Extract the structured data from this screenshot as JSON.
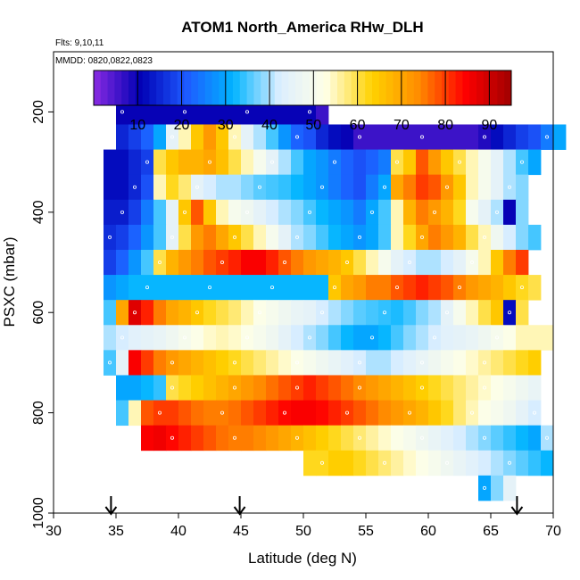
{
  "chart_data": {
    "type": "heatmap",
    "title": "ATOM1 North_America RHw_DLH",
    "annotations": [
      "Flts: 9,10,11",
      "MMDD: 0820,0822,0823"
    ],
    "xlabel": "Latitude (deg N)",
    "ylabel": "PSXC (mbar)",
    "xlim": [
      30,
      70
    ],
    "ylim": [
      1000,
      80
    ],
    "y_reversed": true,
    "x_ticks": [
      30,
      35,
      40,
      45,
      50,
      55,
      60,
      65,
      70
    ],
    "y_ticks": [
      200,
      400,
      600,
      800,
      1000
    ],
    "colorbar": {
      "range": [
        0,
        95
      ],
      "ticks": [
        10,
        20,
        30,
        40,
        50,
        60,
        70,
        80,
        90
      ],
      "colors": [
        "#8a2be2",
        "#0000b4",
        "#1e5aff",
        "#00b4ff",
        "#dceeff",
        "#ffffe6",
        "#ffd200",
        "#ff8c00",
        "#ff0000",
        "#a00000"
      ]
    },
    "cell_width_deg": 1,
    "cell_height_mbar": 50,
    "arrows_at_latitude": [
      34.6,
      44.9,
      67.1
    ],
    "bands": [
      {
        "p": 200,
        "lat_start": 35,
        "values": [
          10,
          10,
          10,
          10,
          10,
          10,
          10,
          10,
          10,
          10,
          10,
          10,
          10,
          10,
          10,
          10,
          6
        ]
      },
      {
        "p": 250,
        "lat_start": 35,
        "values": [
          15,
          18,
          22,
          30,
          45,
          55,
          65,
          72,
          65,
          55,
          45,
          40,
          35,
          28,
          22,
          20,
          15,
          12,
          10,
          6,
          6,
          6,
          6,
          6,
          6,
          6,
          6,
          6,
          6,
          8,
          12,
          15,
          18,
          20,
          25,
          30
        ]
      },
      {
        "p": 300,
        "lat_start": 34,
        "values": [
          12,
          12,
          15,
          18,
          60,
          65,
          68,
          68,
          70,
          66,
          60,
          55,
          50,
          45,
          40,
          35,
          30,
          28,
          25,
          22,
          20,
          22,
          25,
          60,
          65,
          78,
          72,
          65,
          60,
          55,
          50,
          45,
          40,
          35,
          30
        ]
      },
      {
        "p": 350,
        "lat_start": 34,
        "values": [
          12,
          12,
          15,
          20,
          55,
          62,
          58,
          45,
          42,
          40,
          40,
          38,
          36,
          35,
          34,
          32,
          30,
          28,
          25,
          22,
          20,
          25,
          30,
          70,
          75,
          80,
          78,
          72,
          65,
          55,
          50,
          45,
          40,
          38
        ]
      },
      {
        "p": 400,
        "lat_start": 34,
        "values": [
          14,
          14,
          18,
          25,
          35,
          45,
          65,
          78,
          65,
          55,
          50,
          48,
          45,
          42,
          40,
          38,
          35,
          32,
          30,
          28,
          25,
          30,
          35,
          55,
          68,
          75,
          72,
          68,
          62,
          50,
          45,
          40,
          10,
          38
        ]
      },
      {
        "p": 450,
        "lat_start": 34,
        "values": [
          16,
          18,
          22,
          28,
          35,
          45,
          60,
          72,
          75,
          70,
          65,
          60,
          55,
          50,
          45,
          40,
          38,
          35,
          32,
          30,
          28,
          30,
          35,
          55,
          62,
          70,
          75,
          72,
          68,
          60,
          55,
          48,
          42,
          38,
          35
        ]
      },
      {
        "p": 500,
        "lat_start": 34,
        "values": [
          18,
          22,
          28,
          35,
          60,
          68,
          72,
          75,
          78,
          80,
          82,
          85,
          85,
          82,
          78,
          75,
          72,
          70,
          68,
          65,
          60,
          55,
          50,
          45,
          42,
          40,
          40,
          42,
          45,
          50,
          55,
          65,
          75,
          80
        ]
      },
      {
        "p": 550,
        "lat_start": 34,
        "values": [
          28,
          30,
          32,
          32,
          32,
          32,
          32,
          32,
          32,
          32,
          32,
          32,
          32,
          32,
          32,
          32,
          32,
          32,
          65,
          70,
          72,
          75,
          75,
          78,
          80,
          82,
          80,
          78,
          75,
          72,
          70,
          68,
          65,
          62,
          60
        ]
      },
      {
        "p": 600,
        "lat_start": 34,
        "values": [
          35,
          70,
          88,
          82,
          75,
          70,
          68,
          65,
          62,
          60,
          58,
          55,
          52,
          50,
          48,
          46,
          45,
          42,
          40,
          38,
          36,
          35,
          34,
          33,
          35,
          38,
          40,
          45,
          50,
          55,
          60,
          65,
          12,
          60
        ]
      },
      {
        "p": 650,
        "lat_start": 34,
        "values": [
          40,
          42,
          44,
          45,
          46,
          48,
          50,
          52,
          54,
          55,
          54,
          52,
          50,
          48,
          45,
          42,
          40,
          38,
          35,
          32,
          30,
          30,
          32,
          35,
          38,
          40,
          42,
          44,
          45,
          46,
          48,
          50,
          52,
          55,
          55,
          55
        ]
      },
      {
        "p": 700,
        "lat_start": 34,
        "values": [
          35,
          45,
          85,
          80,
          75,
          72,
          70,
          68,
          66,
          64,
          62,
          60,
          58,
          56,
          54,
          52,
          50,
          48,
          46,
          44,
          42,
          40,
          40,
          42,
          44,
          46,
          48,
          50,
          52,
          54,
          56,
          58,
          60,
          62,
          64
        ]
      },
      {
        "p": 750,
        "lat_start": 35,
        "values": [
          30,
          30,
          32,
          34,
          60,
          62,
          64,
          66,
          68,
          70,
          72,
          74,
          76,
          78,
          80,
          82,
          80,
          78,
          76,
          74,
          72,
          70,
          68,
          66,
          64,
          62,
          60,
          58,
          56,
          54,
          52,
          50,
          48,
          46
        ]
      },
      {
        "p": 800,
        "lat_start": 35,
        "values": [
          35,
          55,
          78,
          80,
          80,
          78,
          76,
          75,
          75,
          76,
          78,
          80,
          82,
          84,
          85,
          85,
          84,
          82,
          80,
          78,
          76,
          74,
          72,
          70,
          68,
          65,
          62,
          58,
          55,
          52,
          50,
          48,
          45,
          42
        ]
      },
      {
        "p": 850,
        "lat_start": 37,
        "values": [
          85,
          86,
          84,
          82,
          80,
          78,
          76,
          75,
          75,
          74,
          72,
          70,
          68,
          66,
          64,
          62,
          60,
          58,
          56,
          54,
          52,
          50,
          48,
          46,
          44,
          42,
          40,
          38,
          36,
          34,
          32,
          30,
          40
        ]
      },
      {
        "p": 900,
        "lat_start": 50,
        "values": [
          62,
          62,
          64,
          64,
          62,
          60,
          58,
          56,
          54,
          52,
          50,
          48,
          46,
          44,
          42,
          40,
          38,
          36,
          34,
          32
        ]
      },
      {
        "p": 950,
        "lat_start": 64,
        "values": [
          30,
          38,
          45
        ]
      }
    ]
  }
}
